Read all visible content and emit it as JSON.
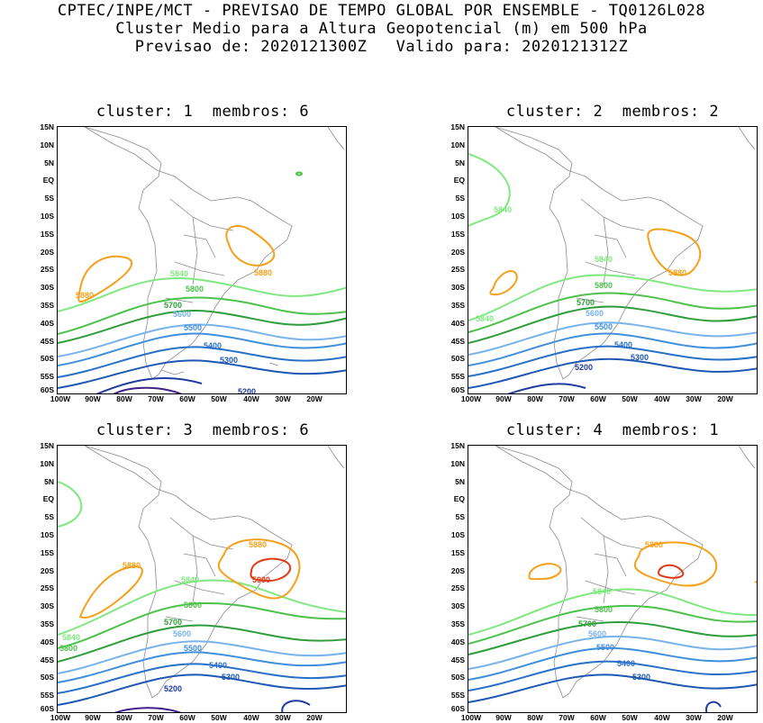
{
  "header": {
    "line1": "CPTEC/INPE/MCT - PREVISAO DE TEMPO GLOBAL POR ENSEMBLE - TQ0126L028",
    "line2": "Cluster Medio para a Altura Geopotencial (m) em 500 hPa",
    "line3": "Previsao de: 2020121300Z   Valido para: 2020121312Z"
  },
  "axes": {
    "lat_labels": [
      "15N",
      "10N",
      "5N",
      "EQ",
      "5S",
      "10S",
      "15S",
      "20S",
      "25S",
      "30S",
      "35S",
      "40S",
      "45S",
      "50S",
      "55S",
      "60S"
    ],
    "lon_labels": [
      "100W",
      "90W",
      "80W",
      "70W",
      "60W",
      "50W",
      "40W",
      "30W",
      "20W"
    ]
  },
  "contour_colors": {
    "5200": "#1f3ca0",
    "5300": "#1e58b4",
    "5400": "#2870c8",
    "5500": "#3f8fdc",
    "5600": "#79b3ec",
    "5700": "#2f9e3a",
    "5800": "#4cc24a",
    "5840": "#80e880",
    "5880": "#f5a01a",
    "5900": "#e03a14",
    "low": "#40208a"
  },
  "panels": [
    {
      "title": "cluster: 1  membros: 6",
      "labels": [
        "5880",
        "5880",
        "5840",
        "5800",
        "5700",
        "5600",
        "5500",
        "5400",
        "5300",
        "5200"
      ]
    },
    {
      "title": "cluster: 2  membros: 2",
      "labels": [
        "5840",
        "5880",
        "5840",
        "5840",
        "5800",
        "5700",
        "5600",
        "5500",
        "5400",
        "5300",
        "5200"
      ]
    },
    {
      "title": "cluster: 3  membros: 6",
      "labels": [
        "5880",
        "5880",
        "5900",
        "5840",
        "5840",
        "5800",
        "5800",
        "5700",
        "5600",
        "5500",
        "5400",
        "5300",
        "5200"
      ]
    },
    {
      "title": "cluster: 4  membros: 1",
      "labels": [
        "5880",
        "5840",
        "5800",
        "5700",
        "5600",
        "5500",
        "5400",
        "5300"
      ]
    }
  ]
}
